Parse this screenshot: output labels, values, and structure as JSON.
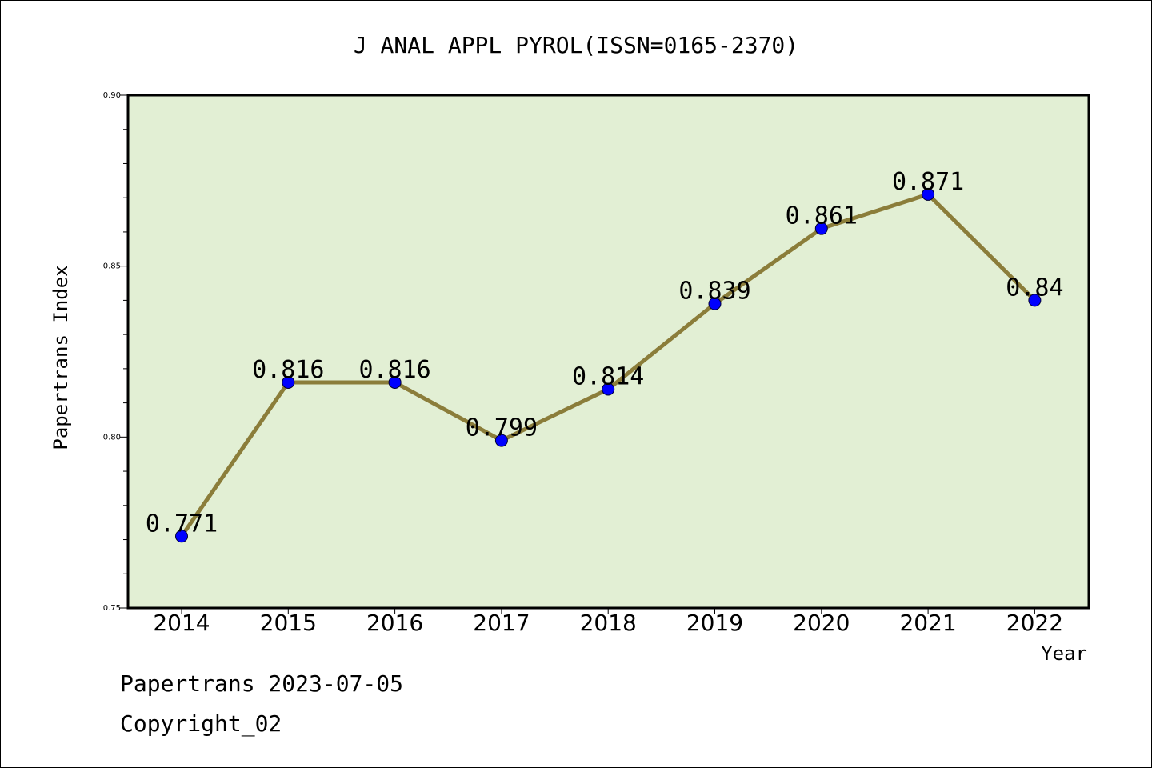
{
  "chart_data": {
    "type": "line",
    "title": "J ANAL APPL PYROL(ISSN=0165-2370)",
    "xlabel": "Year",
    "ylabel": "Papertrans Index",
    "categories": [
      "2014",
      "2015",
      "2016",
      "2017",
      "2018",
      "2019",
      "2020",
      "2021",
      "2022"
    ],
    "values": [
      0.771,
      0.816,
      0.816,
      0.799,
      0.814,
      0.839,
      0.861,
      0.871,
      0.84
    ],
    "data_labels": [
      "0.771",
      "0.816",
      "0.816",
      "0.799",
      "0.814",
      "0.839",
      "0.861",
      "0.871",
      "0.84"
    ],
    "ylim": [
      0.75,
      0.9
    ],
    "y_ticks": [
      "0.75",
      "0.80",
      "0.85",
      "0.90"
    ],
    "line_color": "#8b7d3a",
    "marker_color": "#0000ff",
    "plot_background": "#e2efd4",
    "grid": false,
    "legend": "none"
  },
  "footer": {
    "source": "Papertrans 2023-07-05",
    "copyright": "Copyright_02"
  }
}
